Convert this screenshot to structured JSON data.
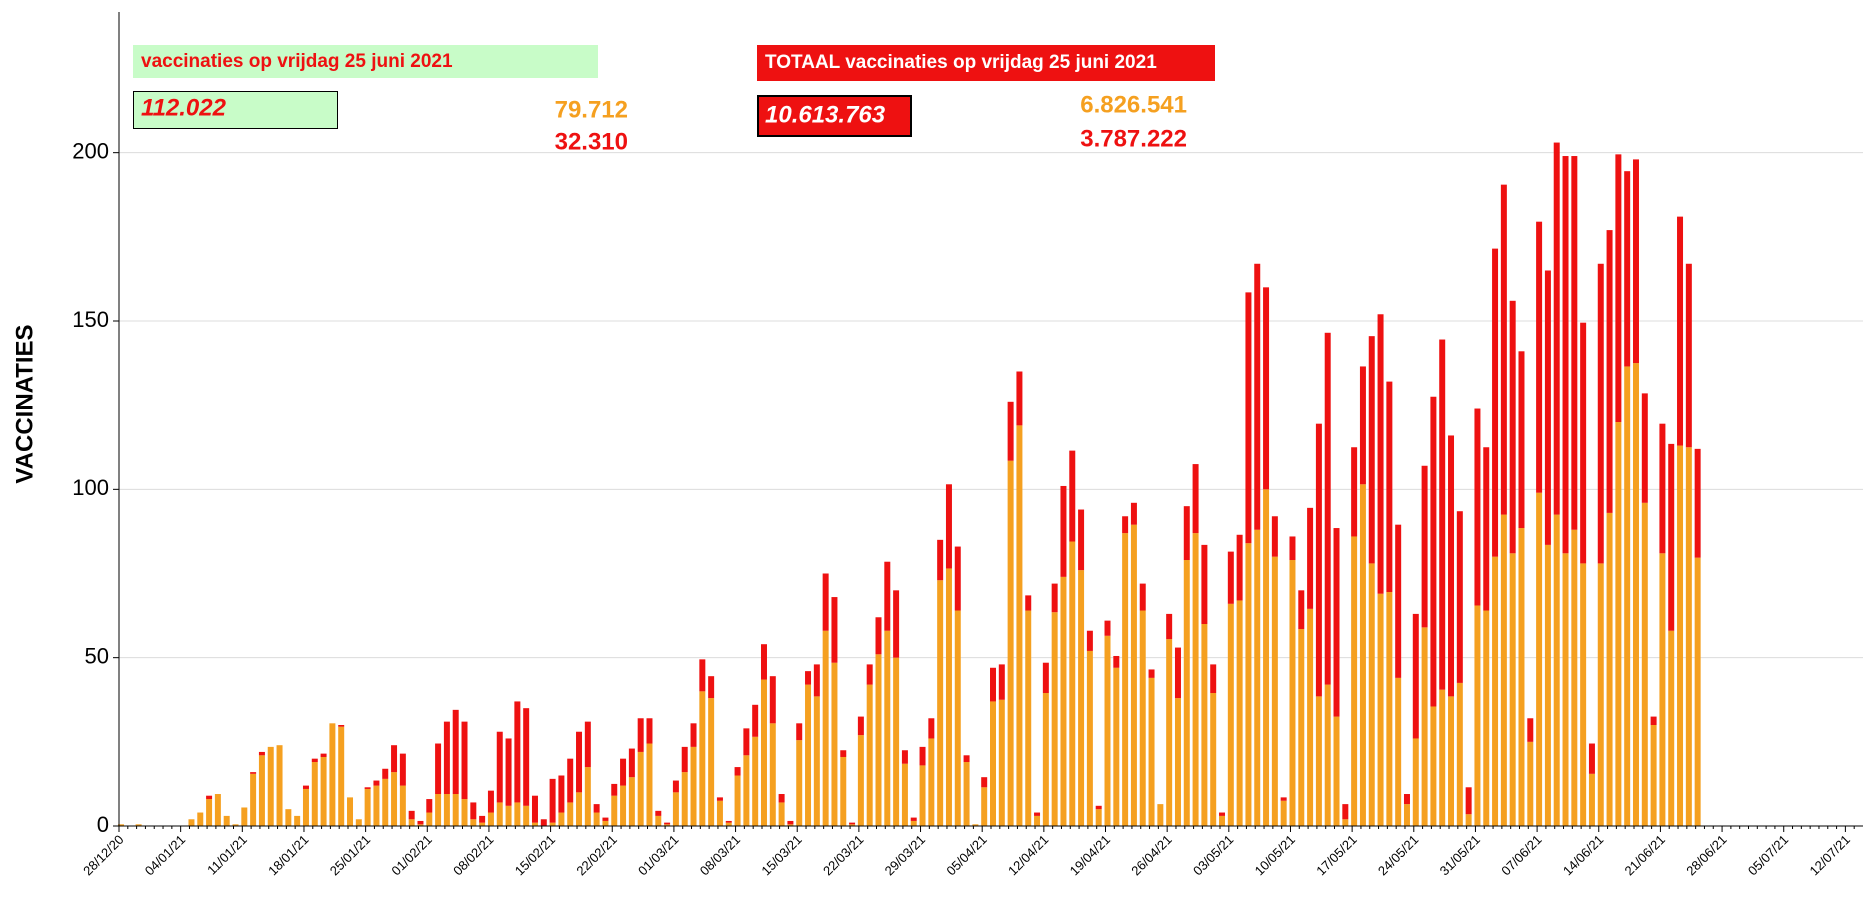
{
  "chart_data": {
    "type": "stacked-bar",
    "y_label": "VACCINATIES",
    "annotations": {
      "day_title": "vaccinaties op vrijdag 25 juni 2021",
      "day_total": "112.022",
      "day_orange": "79.712",
      "day_red": "32.310",
      "total_title": "TOTAAL vaccinaties op vrijdag 25 juni 2021",
      "total_total": "10.613.763",
      "total_orange": "6.826.541",
      "total_red": "3.787.222"
    },
    "categories": [
      "28/12/20",
      null,
      null,
      null,
      null,
      null,
      null,
      "04/01/21",
      null,
      null,
      null,
      null,
      null,
      null,
      "11/01/21",
      null,
      null,
      null,
      null,
      null,
      null,
      "18/01/21",
      null,
      null,
      null,
      null,
      null,
      null,
      "25/01/21",
      null,
      null,
      null,
      null,
      null,
      null,
      "01/02/21",
      null,
      null,
      null,
      null,
      null,
      null,
      "08/02/21",
      null,
      null,
      null,
      null,
      null,
      null,
      "15/02/21",
      null,
      null,
      null,
      null,
      null,
      null,
      "22/02/21",
      null,
      null,
      null,
      null,
      null,
      null,
      "01/03/21",
      null,
      null,
      null,
      null,
      null,
      null,
      "08/03/21",
      null,
      null,
      null,
      null,
      null,
      null,
      "15/03/21",
      null,
      null,
      null,
      null,
      null,
      null,
      "22/03/21",
      null,
      null,
      null,
      null,
      null,
      null,
      "29/03/21",
      null,
      null,
      null,
      null,
      null,
      null,
      "05/04/21",
      null,
      null,
      null,
      null,
      null,
      null,
      "12/04/21",
      null,
      null,
      null,
      null,
      null,
      null,
      "19/04/21",
      null,
      null,
      null,
      null,
      null,
      null,
      "26/04/21",
      null,
      null,
      null,
      null,
      null,
      null,
      "03/05/21",
      null,
      null,
      null,
      null,
      null,
      null,
      "10/05/21",
      null,
      null,
      null,
      null,
      null,
      null,
      "17/05/21",
      null,
      null,
      null,
      null,
      null,
      null,
      "24/05/21",
      null,
      null,
      null,
      null,
      null,
      null,
      "31/05/21",
      null,
      null,
      null,
      null,
      null,
      null,
      "07/06/21",
      null,
      null,
      null,
      null,
      null,
      null,
      "14/06/21",
      null,
      null,
      null,
      null,
      null,
      null,
      "21/06/21",
      null,
      null,
      null,
      null,
      null,
      null,
      "28/06/21",
      null,
      null,
      null,
      null,
      null,
      null,
      "05/07/21",
      null,
      null,
      null,
      null,
      null,
      null,
      "12/07/21",
      null
    ],
    "series": [
      {
        "color": "#f5a020",
        "values": [
          0.5,
          0,
          0.5,
          0,
          0,
          0,
          0,
          0,
          2,
          4,
          8,
          9.5,
          3,
          0.5,
          5.5,
          15.5,
          21,
          23.5,
          24,
          5,
          3,
          11,
          19,
          20.5,
          30.5,
          29.5,
          8.5,
          2,
          11,
          12,
          14,
          16,
          12,
          2,
          0.5,
          4,
          9.5,
          9.5,
          9.5,
          8,
          2,
          1,
          4,
          7,
          6,
          7,
          6,
          1,
          0,
          1,
          4,
          7,
          10,
          17.5,
          4,
          1.5,
          9,
          12,
          14.5,
          22,
          24.5,
          3,
          0.5,
          10,
          16,
          23.5,
          40,
          38,
          7.5,
          1,
          15,
          21,
          26.5,
          43.5,
          30.5,
          7,
          0.5,
          25.5,
          42,
          38.5,
          58,
          48.5,
          20.5,
          0.5,
          27,
          42,
          51,
          58,
          50,
          18.5,
          1.5,
          18,
          26,
          73,
          76.5,
          64,
          19,
          0.5,
          11.5,
          37,
          37.5,
          108.5,
          119,
          64,
          3,
          39.5,
          63.5,
          74,
          84.5,
          76,
          52,
          5,
          56.5,
          47,
          87,
          89.5,
          64,
          44,
          6.5,
          55.5,
          38,
          79,
          87,
          60,
          39.5,
          3,
          66,
          67,
          84,
          88,
          100,
          80,
          7.5,
          79,
          58.5,
          64.5,
          38.5,
          42,
          32.5,
          2,
          86,
          101.5,
          78,
          69,
          69.5,
          44,
          6.5,
          26,
          59,
          35.5,
          40.5,
          38.5,
          42.5,
          3.5,
          65.5,
          64,
          80,
          92.5,
          81,
          88.5,
          25,
          99,
          83.5,
          92.5,
          81,
          88,
          78,
          15.5,
          78,
          93,
          120,
          136.5,
          137.5,
          96,
          30,
          81,
          58,
          113,
          112.5,
          79.712,
          null,
          null,
          null,
          null,
          null,
          null,
          null,
          null,
          null,
          null,
          null,
          null,
          null,
          null,
          null,
          null,
          null,
          null
        ]
      },
      {
        "color": "#ee1111",
        "values": [
          0,
          0,
          0,
          0,
          0,
          0,
          0,
          0,
          0,
          0,
          1,
          0,
          0,
          0,
          0,
          0.5,
          1,
          0,
          0,
          0,
          0,
          1,
          1,
          1,
          0,
          0.5,
          0,
          0,
          0.5,
          1.5,
          3,
          8,
          9.5,
          2.5,
          1,
          4,
          15,
          21.5,
          25,
          23,
          5,
          2,
          6.5,
          21,
          20,
          30,
          29,
          8,
          2,
          13,
          11,
          13,
          18,
          13.5,
          2.5,
          1,
          3.5,
          8,
          8.5,
          10,
          7.5,
          1.5,
          0.5,
          3.5,
          7.5,
          7,
          9.5,
          6.5,
          1,
          0.5,
          2.5,
          8,
          9.5,
          10.5,
          14,
          2.5,
          1,
          5,
          4,
          9.5,
          17,
          19.5,
          2,
          0.5,
          5.5,
          6,
          11,
          20.5,
          20,
          4,
          1,
          5.5,
          6,
          12,
          25,
          19,
          2,
          0,
          3,
          10,
          10.5,
          17.5,
          16,
          4.5,
          1,
          9,
          8.5,
          27,
          27,
          18,
          6,
          1,
          4.5,
          3.5,
          5,
          6.5,
          8,
          2.5,
          0,
          7.5,
          15,
          16,
          20.5,
          23.5,
          8.5,
          1,
          15.5,
          19.5,
          74.5,
          79,
          60,
          12,
          1,
          7,
          11.5,
          30,
          81,
          104.5,
          56,
          4.5,
          26.5,
          35,
          67.5,
          83,
          62.5,
          45.5,
          3,
          37,
          48,
          92,
          104,
          77.5,
          51,
          8,
          58.5,
          48.5,
          91.5,
          98,
          75,
          52.5,
          7,
          80.5,
          81.5,
          110.5,
          118,
          111,
          71.5,
          9,
          89,
          84,
          79.5,
          58,
          60.5,
          32.5,
          2.5,
          38.5,
          55.5,
          68,
          54.5,
          32.31,
          null,
          null,
          null,
          null,
          null,
          null,
          null,
          null,
          null,
          null,
          null,
          null,
          null,
          null,
          null,
          null,
          null,
          null
        ]
      }
    ],
    "ylim": [
      0,
      240
    ],
    "yticks": [
      0,
      50,
      100,
      150,
      200
    ],
    "grid": true
  }
}
